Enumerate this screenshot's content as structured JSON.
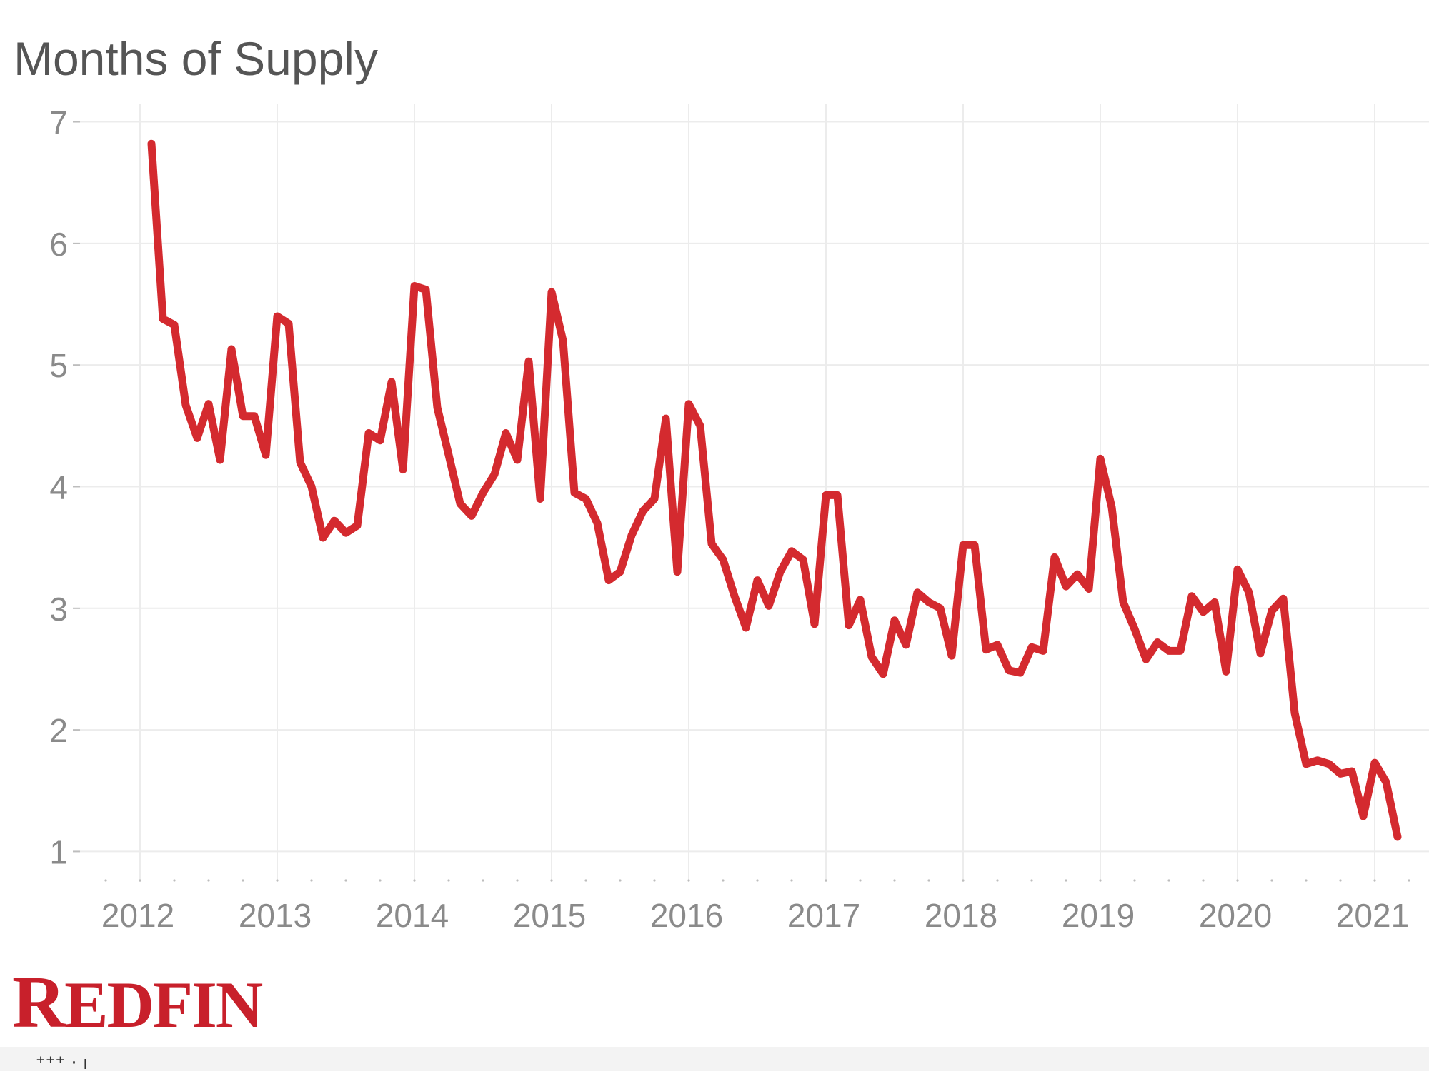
{
  "chart_data": {
    "type": "line",
    "title": "Months of Supply",
    "xlabel": "",
    "ylabel": "",
    "ylim": [
      0.75,
      7.15
    ],
    "xlim": [
      "2011-10-01",
      "2021-05-01"
    ],
    "y_ticks": [
      1,
      2,
      3,
      4,
      5,
      6,
      7
    ],
    "x_ticks": [
      "2012",
      "2013",
      "2014",
      "2015",
      "2016",
      "2017",
      "2018",
      "2019",
      "2020",
      "2021"
    ],
    "grid": true,
    "legend": "none",
    "line_color": "#d42a2f",
    "series": [
      {
        "x": [
          "2012-02",
          "2012-03",
          "2012-04",
          "2012-05",
          "2012-06",
          "2012-07",
          "2012-08",
          "2012-09",
          "2012-10",
          "2012-11",
          "2012-12",
          "2013-01",
          "2013-02",
          "2013-03",
          "2013-04",
          "2013-05",
          "2013-06",
          "2013-07",
          "2013-08",
          "2013-09",
          "2013-10",
          "2013-11",
          "2013-12",
          "2014-01",
          "2014-02",
          "2014-03",
          "2014-04",
          "2014-05",
          "2014-06",
          "2014-07",
          "2014-08",
          "2014-09",
          "2014-10",
          "2014-11",
          "2014-12",
          "2015-01",
          "2015-02",
          "2015-03",
          "2015-04",
          "2015-05",
          "2015-06",
          "2015-07",
          "2015-08",
          "2015-09",
          "2015-10",
          "2015-11",
          "2015-12",
          "2016-01",
          "2016-02",
          "2016-03",
          "2016-04",
          "2016-05",
          "2016-06",
          "2016-07",
          "2016-08",
          "2016-09",
          "2016-10",
          "2016-11",
          "2016-12",
          "2017-01",
          "2017-02",
          "2017-03",
          "2017-04",
          "2017-05",
          "2017-06",
          "2017-07",
          "2017-08",
          "2017-09",
          "2017-10",
          "2017-11",
          "2017-12",
          "2018-01",
          "2018-02",
          "2018-03",
          "2018-04",
          "2018-05",
          "2018-06",
          "2018-07",
          "2018-08",
          "2018-09",
          "2018-10",
          "2018-11",
          "2018-12",
          "2019-01",
          "2019-02",
          "2019-03",
          "2019-04",
          "2019-05",
          "2019-06",
          "2019-07",
          "2019-08",
          "2019-09",
          "2019-10",
          "2019-11",
          "2019-12",
          "2020-01",
          "2020-02",
          "2020-03",
          "2020-04",
          "2020-05",
          "2020-06",
          "2020-07",
          "2020-08",
          "2020-09",
          "2020-10",
          "2020-11",
          "2020-12",
          "2021-01",
          "2021-02",
          "2021-03"
        ],
        "values": [
          6.82,
          5.38,
          5.33,
          4.67,
          4.4,
          4.68,
          4.22,
          5.13,
          4.58,
          4.58,
          4.26,
          5.4,
          5.34,
          4.2,
          4.0,
          3.58,
          3.72,
          3.62,
          3.68,
          4.44,
          4.38,
          4.86,
          4.14,
          5.65,
          5.62,
          4.65,
          4.26,
          3.86,
          3.76,
          3.95,
          4.1,
          4.44,
          4.22,
          5.03,
          3.9,
          5.6,
          5.2,
          3.95,
          3.9,
          3.7,
          3.23,
          3.3,
          3.6,
          3.8,
          3.9,
          4.56,
          3.3,
          4.68,
          4.5,
          3.53,
          3.4,
          3.1,
          2.84,
          3.23,
          3.02,
          3.3,
          3.47,
          3.4,
          2.87,
          3.93,
          3.93,
          2.86,
          3.07,
          2.6,
          2.46,
          2.9,
          2.7,
          3.13,
          3.05,
          3.0,
          2.61,
          3.52,
          3.52,
          2.66,
          2.7,
          2.49,
          2.47,
          2.68,
          2.65,
          3.42,
          3.18,
          3.28,
          3.16,
          4.23,
          3.83,
          3.05,
          2.83,
          2.58,
          2.72,
          2.65,
          2.65,
          3.1,
          2.97,
          3.05,
          2.48,
          3.32,
          3.13,
          2.63,
          2.98,
          3.08,
          2.14,
          1.72,
          1.75,
          1.72,
          1.64,
          1.66,
          1.29,
          1.73,
          1.57,
          1.12
        ]
      }
    ]
  },
  "brand": {
    "logo_text": "REDFIN"
  }
}
